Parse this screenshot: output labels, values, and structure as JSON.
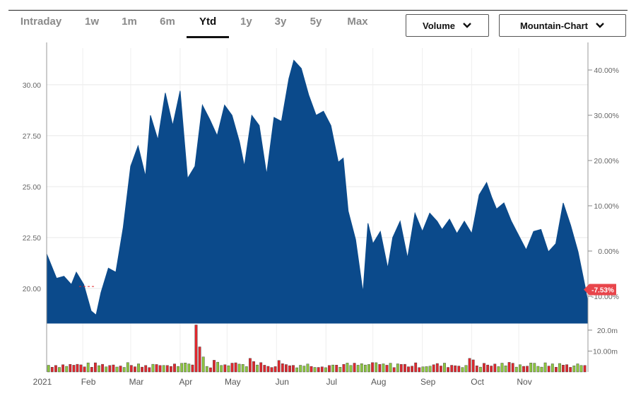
{
  "tabs": [
    {
      "label": "Intraday",
      "active": false
    },
    {
      "label": "1w",
      "active": false
    },
    {
      "label": "1m",
      "active": false
    },
    {
      "label": "6m",
      "active": false
    },
    {
      "label": "Ytd",
      "active": true
    },
    {
      "label": "1y",
      "active": false
    },
    {
      "label": "3y",
      "active": false
    },
    {
      "label": "5y",
      "active": false
    },
    {
      "label": "Max",
      "active": false
    }
  ],
  "dropdowns": {
    "volume": {
      "label": "Volume",
      "icon": "chevron-down-icon"
    },
    "chart_type": {
      "label": "Mountain-Chart",
      "icon": "chevron-down-icon"
    }
  },
  "colors": {
    "mountain": "#0b4a8b",
    "volume_up": "#8dc63f",
    "volume_down": "#e0282e",
    "badge": "#e8454b"
  },
  "current_change_badge": "-7.53%",
  "chart_data": {
    "type": "area",
    "x_tick_labels": [
      "2021",
      "Feb",
      "Mar",
      "Apr",
      "May",
      "Jun",
      "Jul",
      "Aug",
      "Sep",
      "Oct",
      "Nov"
    ],
    "price_axis": {
      "ticks": [
        "30.00",
        "27.50",
        "25.00",
        "22.50",
        "20.00"
      ],
      "range": [
        18.3,
        31.8
      ]
    },
    "percent_axis": {
      "ticks": [
        "40.00%",
        "30.00%",
        "20.00%",
        "10.00%",
        "0.00%",
        "-10.00%"
      ]
    },
    "volume_axis": {
      "ticks": [
        "20.0m",
        "10.00m"
      ],
      "range": [
        0,
        23
      ]
    },
    "series": [
      {
        "x": [
          0.0,
          0.2,
          0.35,
          0.5,
          0.6,
          0.75,
          0.9,
          1.0,
          1.1,
          1.25,
          1.4,
          1.55,
          1.7,
          1.85,
          2.0,
          2.1,
          2.25,
          2.4,
          2.55,
          2.7,
          2.85,
          3.0,
          3.15,
          3.3,
          3.45,
          3.6,
          3.75,
          3.9,
          4.0,
          4.15,
          4.3,
          4.45,
          4.6,
          4.75,
          4.9,
          5.0,
          5.15,
          5.3,
          5.45,
          5.6,
          5.75,
          5.9,
          6.0,
          6.1,
          6.25,
          6.4,
          6.5,
          6.6,
          6.75,
          6.9,
          7.0,
          7.15,
          7.3,
          7.45,
          7.6,
          7.75,
          7.9,
          8.0,
          8.15,
          8.3,
          8.45,
          8.6,
          8.75,
          8.9,
          9.0,
          9.1,
          9.25,
          9.4,
          9.55,
          9.7,
          9.85,
          10.0,
          10.15,
          10.3,
          10.45,
          10.6,
          10.75,
          10.9,
          10.95
        ],
        "y": [
          21.7,
          20.5,
          20.6,
          20.2,
          20.8,
          20.2,
          18.9,
          18.7,
          19.8,
          21.0,
          20.8,
          23.0,
          26.0,
          27.0,
          25.5,
          28.5,
          27.3,
          29.6,
          28.0,
          29.7,
          25.4,
          26.0,
          29.0,
          28.3,
          27.5,
          29.0,
          28.5,
          27.2,
          26.0,
          28.5,
          28.0,
          25.6,
          28.4,
          28.2,
          30.3,
          31.2,
          30.8,
          29.5,
          28.5,
          28.7,
          28.0,
          26.2,
          26.4,
          23.8,
          22.4,
          19.8,
          23.2,
          22.2,
          22.8,
          21.0,
          22.5,
          23.3,
          21.5,
          23.7,
          22.8,
          23.7,
          23.3,
          22.9,
          23.4,
          22.7,
          23.3,
          22.7,
          24.6,
          25.2,
          24.5,
          23.9,
          24.2,
          23.3,
          22.6,
          21.9,
          22.8,
          22.9,
          21.8,
          22.2,
          24.2,
          23.1,
          21.8,
          20.0,
          19.3
        ],
        "color": "#0b4a8b"
      }
    ],
    "volume": {
      "up": [
        0,
        0,
        0,
        0,
        0,
        0,
        0,
        0,
        0,
        0,
        1,
        1,
        1,
        1,
        1,
        1,
        1,
        1,
        1,
        1,
        1,
        1,
        1,
        1,
        1,
        1,
        1,
        1,
        1,
        1,
        1,
        1,
        0,
        0,
        0,
        0,
        0,
        0,
        0,
        0
      ],
      "note": ""
    }
  }
}
